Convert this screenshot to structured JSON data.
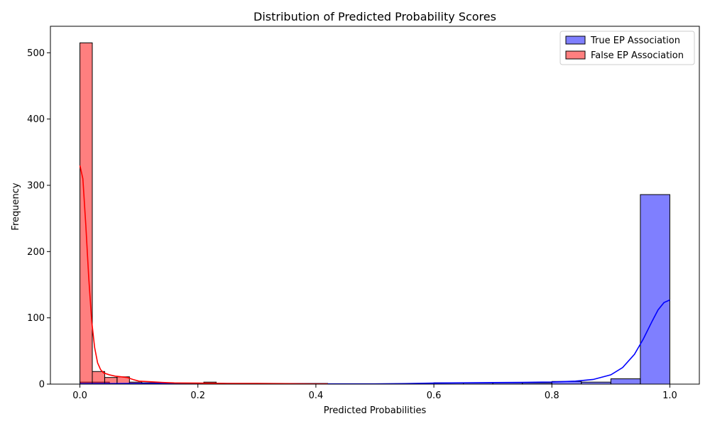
{
  "chart_data": {
    "type": "bar",
    "subtype": "histogram-with-kde",
    "title": "Distribution of Predicted Probability Scores",
    "xlabel": "Predicted Probabilities",
    "ylabel": "Frequency",
    "xlim": [
      -0.05,
      1.05
    ],
    "ylim": [
      0,
      540
    ],
    "xticks": [
      "0.0",
      "0.2",
      "0.4",
      "0.6",
      "0.8",
      "1.0"
    ],
    "yticks": [
      "0",
      "100",
      "200",
      "300",
      "400",
      "500"
    ],
    "grid": false,
    "legend_position": "top-right",
    "series": [
      {
        "name": "True EP Association",
        "color": "#0000ff",
        "bins": [
          {
            "x0": 0.0,
            "x1": 0.05,
            "count": 3
          },
          {
            "x0": 0.05,
            "x1": 0.1,
            "count": 1
          },
          {
            "x0": 0.1,
            "x1": 0.15,
            "count": 1
          },
          {
            "x0": 0.15,
            "x1": 0.2,
            "count": 0
          },
          {
            "x0": 0.2,
            "x1": 0.25,
            "count": 1
          },
          {
            "x0": 0.25,
            "x1": 0.3,
            "count": 0
          },
          {
            "x0": 0.3,
            "x1": 0.35,
            "count": 0
          },
          {
            "x0": 0.35,
            "x1": 0.4,
            "count": 0
          },
          {
            "x0": 0.4,
            "x1": 0.45,
            "count": 0
          },
          {
            "x0": 0.45,
            "x1": 0.5,
            "count": 0
          },
          {
            "x0": 0.5,
            "x1": 0.55,
            "count": 0
          },
          {
            "x0": 0.55,
            "x1": 0.6,
            "count": 0
          },
          {
            "x0": 0.6,
            "x1": 0.65,
            "count": 2
          },
          {
            "x0": 0.65,
            "x1": 0.7,
            "count": 2
          },
          {
            "x0": 0.7,
            "x1": 0.75,
            "count": 2
          },
          {
            "x0": 0.75,
            "x1": 0.8,
            "count": 2
          },
          {
            "x0": 0.8,
            "x1": 0.85,
            "count": 4
          },
          {
            "x0": 0.85,
            "x1": 0.9,
            "count": 3
          },
          {
            "x0": 0.9,
            "x1": 0.95,
            "count": 8
          },
          {
            "x0": 0.95,
            "x1": 1.0,
            "count": 286
          }
        ],
        "kde": [
          [
            0.0,
            0.5
          ],
          [
            0.05,
            0.8
          ],
          [
            0.1,
            1.0
          ],
          [
            0.2,
            1.0
          ],
          [
            0.3,
            0.6
          ],
          [
            0.4,
            0.4
          ],
          [
            0.5,
            0.3
          ],
          [
            0.55,
            0.8
          ],
          [
            0.6,
            1.5
          ],
          [
            0.65,
            2.0
          ],
          [
            0.7,
            2.3
          ],
          [
            0.75,
            2.6
          ],
          [
            0.8,
            3.2
          ],
          [
            0.84,
            4.5
          ],
          [
            0.87,
            7
          ],
          [
            0.9,
            14
          ],
          [
            0.92,
            25
          ],
          [
            0.94,
            45
          ],
          [
            0.955,
            68
          ],
          [
            0.97,
            95
          ],
          [
            0.98,
            112
          ],
          [
            0.99,
            123
          ],
          [
            1.0,
            127
          ]
        ]
      },
      {
        "name": "False EP Association",
        "color": "#ff0000",
        "bins": [
          {
            "x0": 0.0,
            "x1": 0.021,
            "count": 515
          },
          {
            "x0": 0.021,
            "x1": 0.042,
            "count": 19
          },
          {
            "x0": 0.042,
            "x1": 0.063,
            "count": 10
          },
          {
            "x0": 0.063,
            "x1": 0.084,
            "count": 11
          },
          {
            "x0": 0.084,
            "x1": 0.105,
            "count": 3
          },
          {
            "x0": 0.105,
            "x1": 0.126,
            "count": 2
          },
          {
            "x0": 0.126,
            "x1": 0.147,
            "count": 2
          },
          {
            "x0": 0.147,
            "x1": 0.168,
            "count": 1
          },
          {
            "x0": 0.168,
            "x1": 0.189,
            "count": 1
          },
          {
            "x0": 0.189,
            "x1": 0.21,
            "count": 1
          },
          {
            "x0": 0.21,
            "x1": 0.231,
            "count": 3
          },
          {
            "x0": 0.231,
            "x1": 0.252,
            "count": 1
          },
          {
            "x0": 0.252,
            "x1": 0.273,
            "count": 1
          },
          {
            "x0": 0.273,
            "x1": 0.294,
            "count": 1
          },
          {
            "x0": 0.294,
            "x1": 0.315,
            "count": 1
          },
          {
            "x0": 0.315,
            "x1": 0.336,
            "count": 1
          },
          {
            "x0": 0.336,
            "x1": 0.357,
            "count": 0
          },
          {
            "x0": 0.357,
            "x1": 0.378,
            "count": 1
          },
          {
            "x0": 0.378,
            "x1": 0.399,
            "count": 1
          },
          {
            "x0": 0.399,
            "x1": 0.42,
            "count": 1
          }
        ],
        "kde": [
          [
            0.0,
            330
          ],
          [
            0.005,
            310
          ],
          [
            0.01,
            240
          ],
          [
            0.015,
            160
          ],
          [
            0.02,
            95
          ],
          [
            0.025,
            55
          ],
          [
            0.03,
            32
          ],
          [
            0.035,
            22
          ],
          [
            0.04,
            17
          ],
          [
            0.05,
            14
          ],
          [
            0.06,
            12
          ],
          [
            0.07,
            11
          ],
          [
            0.08,
            10
          ],
          [
            0.09,
            7
          ],
          [
            0.1,
            4.5
          ],
          [
            0.12,
            3.5
          ],
          [
            0.14,
            2.5
          ],
          [
            0.16,
            1.8
          ],
          [
            0.2,
            1.5
          ],
          [
            0.25,
            1.0
          ],
          [
            0.3,
            1.0
          ],
          [
            0.35,
            0.7
          ],
          [
            0.4,
            0.4
          ],
          [
            0.42,
            0.3
          ]
        ]
      }
    ]
  }
}
